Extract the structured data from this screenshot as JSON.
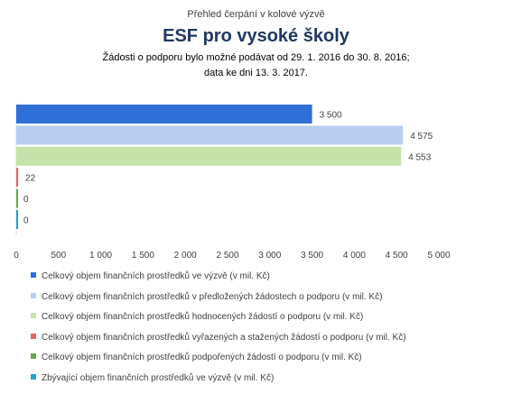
{
  "chart_data": {
    "type": "bar",
    "orientation": "horizontal",
    "supertitle": "Přehled čerpání v kolové výzvě",
    "title": "ESF pro vysoké školy",
    "notes": [
      "Žádosti o podporu bylo možné  podávat od 29. 1. 2016 do 30. 8. 2016;",
      "data ke dni 13. 3. 2017."
    ],
    "xlim": [
      0,
      5000
    ],
    "xticks": [
      "0",
      "500",
      "1 000",
      "1 500",
      "2 000",
      "2 500",
      "3 000",
      "3 500",
      "4 000",
      "4 500",
      "5 000"
    ],
    "grid": false,
    "legend_position": "bottom",
    "series": [
      {
        "name": "Celkový objem finančních prostředků ve výzvě (v mil. Kč)",
        "value": 3500,
        "label": "3 500",
        "color": "#2f6fd8"
      },
      {
        "name": "Celkový objem finančních prostředků v předložených žádostech o podporu (v mil. Kč)",
        "value": 4575,
        "label": "4 575",
        "color": "#b8cdf0"
      },
      {
        "name": "Celkový objem finančních prostředků hodnocených žádostí o podporu (v mil. Kč)",
        "value": 4553,
        "label": "4 553",
        "color": "#c5e3a8"
      },
      {
        "name": "Celkový objem finančních prostředků vyřazených a stažených žádostí o podporu (v mil. Kč)",
        "value": 22,
        "label": "22",
        "color": "#e06666"
      },
      {
        "name": "Celkový objem finančních prostředků podpořených žádostí o podporu (v mil. Kč)",
        "value": 0,
        "label": "0",
        "color": "#6aa84f"
      },
      {
        "name": "Zbývající objem finančních prostředků ve výzvě (v mil. Kč)",
        "value": 0,
        "label": "0",
        "color": "#1fa3c8"
      }
    ]
  }
}
